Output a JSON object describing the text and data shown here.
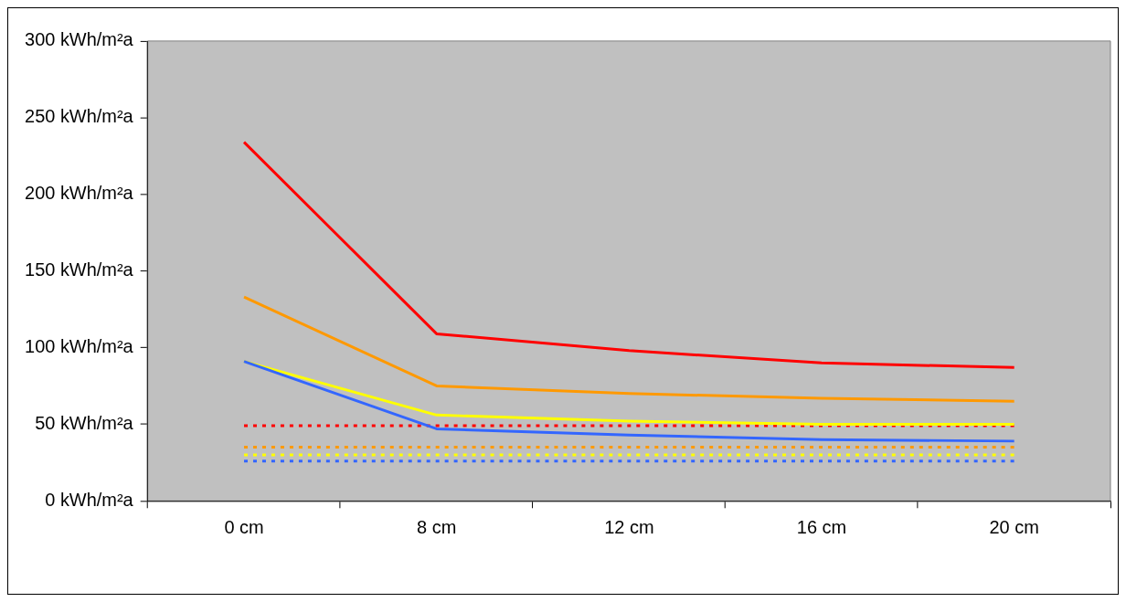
{
  "chart_data": {
    "type": "line",
    "categories": [
      "0 cm",
      "8 cm",
      "12 cm",
      "16 cm",
      "20 cm"
    ],
    "series": [
      {
        "color": "#ff0000",
        "values": [
          234,
          109,
          98,
          90,
          87
        ]
      },
      {
        "color": "#ff9900",
        "values": [
          133,
          75,
          70,
          67,
          65
        ]
      },
      {
        "color": "#ffff00",
        "values": [
          91,
          56,
          52,
          50,
          50
        ]
      },
      {
        "color": "#3366ff",
        "values": [
          91,
          47,
          43,
          40,
          39
        ]
      },
      {
        "color": "#ff0000",
        "values": [
          49,
          49,
          49,
          49,
          49
        ],
        "line_style": "dotted"
      },
      {
        "color": "#ff9900",
        "values": [
          35,
          35,
          35,
          35,
          35
        ],
        "line_style": "dotted"
      },
      {
        "color": "#ffff00",
        "values": [
          30,
          30,
          30,
          30,
          30
        ],
        "line_style": "dotted"
      },
      {
        "color": "#3366ff",
        "values": [
          26,
          26,
          26,
          26,
          26
        ],
        "line_style": "dotted"
      }
    ],
    "ylim": [
      0,
      300
    ],
    "yticks": [
      {
        "value": 0,
        "label": "0 kWh/m²a"
      },
      {
        "value": 50,
        "label": "50 kWh/m²a"
      },
      {
        "value": 100,
        "label": "100 kWh/m²a"
      },
      {
        "value": 150,
        "label": "150 kWh/m²a"
      },
      {
        "value": 200,
        "label": "200 kWh/m²a"
      },
      {
        "value": 250,
        "label": "250 kWh/m²a"
      },
      {
        "value": 300,
        "label": "300 kWh/m²a"
      }
    ],
    "grid": false,
    "legend": false,
    "marker": "none",
    "line_style": "solid"
  }
}
